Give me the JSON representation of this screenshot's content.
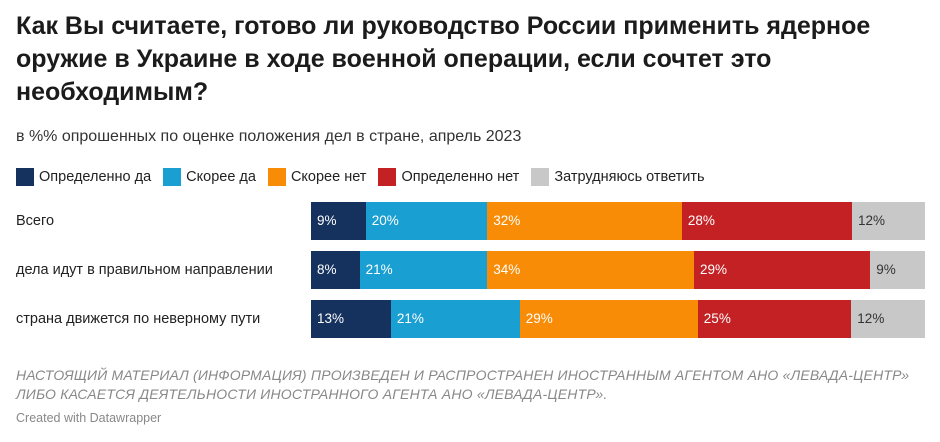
{
  "title": "Как Вы считаете, готово ли руководство России применить ядерное оружие в Украине в ходе военной операции, если сочтет это необходимым?",
  "subtitle": "в %% опрошенных по оценке положения дел в стране, апрель 2023",
  "disclaimer": "НАСТОЯЩИЙ МАТЕРИАЛ (ИНФОРМАЦИЯ) ПРОИЗВЕДЕН И РАСПРОСТРАНЕН ИНОСТРАННЫМ АГЕНТОМ АНО «ЛЕВАДА-ЦЕНТР» ЛИБО КАСАЕТСЯ ДЕЯТЕЛЬНОСТИ ИНОСТРАННОГО АГЕНТА АНО «ЛЕВАДА-ЦЕНТР».",
  "credit": "Created with Datawrapper",
  "chart_data": {
    "type": "bar",
    "orientation": "horizontal",
    "stacked": true,
    "legend_position": "top",
    "categories": [
      "Всего",
      "дела идут в правильном направлении",
      "страна движется по неверному пути"
    ],
    "series": [
      {
        "name": "Определенно да",
        "color": "#15325f",
        "label_color": "#ffffff",
        "values": [
          9,
          8,
          13
        ]
      },
      {
        "name": "Скорее да",
        "color": "#1a9fd3",
        "label_color": "#ffffff",
        "values": [
          20,
          21,
          21
        ]
      },
      {
        "name": "Скорее нет",
        "color": "#f98c07",
        "label_color": "#ffffff",
        "values": [
          32,
          34,
          29
        ]
      },
      {
        "name": "Определенно нет",
        "color": "#c42124",
        "label_color": "#ffffff",
        "values": [
          28,
          29,
          25
        ]
      },
      {
        "name": "Затрудняюсь ответить",
        "color": "#c8c8c8",
        "label_color": "#333333",
        "values": [
          12,
          9,
          12
        ]
      }
    ],
    "value_suffix": "%"
  }
}
